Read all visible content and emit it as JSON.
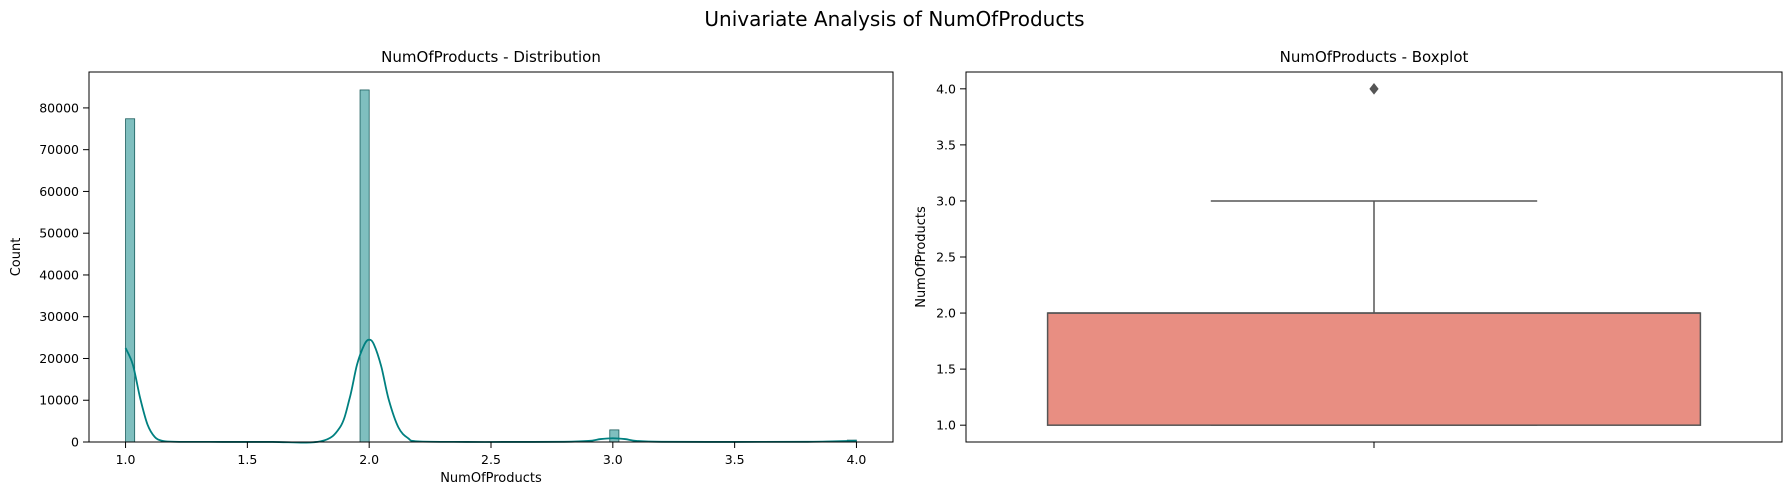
{
  "figure": {
    "suptitle": "Univariate Analysis of NumOfProducts"
  },
  "chart_data": [
    {
      "type": "bar",
      "subtype": "histogram-with-kde",
      "title": "NumOfProducts - Distribution",
      "xlabel": "NumOfProducts",
      "ylabel": "Count",
      "xlim": [
        0.85,
        4.15
      ],
      "ylim": [
        0,
        88600
      ],
      "xticks": [
        1.0,
        1.5,
        2.0,
        2.5,
        3.0,
        3.5,
        4.0
      ],
      "xtick_labels": [
        "1.0",
        "1.5",
        "2.0",
        "2.5",
        "3.0",
        "3.5",
        "4.0"
      ],
      "yticks": [
        0,
        10000,
        20000,
        30000,
        40000,
        50000,
        60000,
        70000,
        80000
      ],
      "ytick_labels": [
        "0",
        "10000",
        "20000",
        "30000",
        "40000",
        "50000",
        "60000",
        "70000",
        "80000"
      ],
      "grid": false,
      "bin_width": 0.0375,
      "bars": [
        {
          "x_start": 1.0,
          "count": 77400
        },
        {
          "x_start": 1.9625,
          "count": 84300
        },
        {
          "x_start": 2.9875,
          "count": 2900
        },
        {
          "x_start": 3.9625,
          "count": 450
        }
      ],
      "kde": {
        "x": [
          1.0,
          1.03,
          1.06,
          1.09,
          1.12,
          1.15,
          1.2,
          1.4,
          1.6,
          1.8,
          1.88,
          1.92,
          1.95,
          1.98,
          2.0,
          2.02,
          2.05,
          2.08,
          2.12,
          2.16,
          2.2,
          2.4,
          2.6,
          2.8,
          2.9,
          2.95,
          3.0,
          3.05,
          3.1,
          3.2,
          3.5,
          3.8,
          3.9,
          4.0
        ],
        "y": [
          22500,
          18500,
          10500,
          4200,
          1200,
          300,
          60,
          20,
          20,
          150,
          3500,
          10500,
          18500,
          23300,
          24500,
          23300,
          18000,
          10200,
          3500,
          900,
          150,
          20,
          20,
          50,
          250,
          700,
          900,
          700,
          250,
          40,
          20,
          50,
          150,
          300
        ]
      },
      "colors": {
        "bar_fill": "#7fbfbf",
        "bar_edge": "#1a5c5c",
        "kde_line": "#008080"
      }
    },
    {
      "type": "box",
      "title": "NumOfProducts - Boxplot",
      "xlabel": "",
      "ylabel": "NumOfProducts",
      "ylim": [
        0.85,
        4.15
      ],
      "yticks": [
        1.0,
        1.5,
        2.0,
        2.5,
        3.0,
        3.5,
        4.0
      ],
      "ytick_labels": [
        "1.0",
        "1.5",
        "2.0",
        "2.5",
        "3.0",
        "3.5",
        "4.0"
      ],
      "grid": false,
      "stats": {
        "q1": 1.0,
        "median": 2.0,
        "q3": 2.0,
        "whisker_low": 1.0,
        "whisker_high": 3.0
      },
      "outliers": [
        4.0
      ],
      "colors": {
        "box_fill": "#e88e82",
        "lines": "#555555",
        "outlier": "#555555"
      }
    }
  ]
}
